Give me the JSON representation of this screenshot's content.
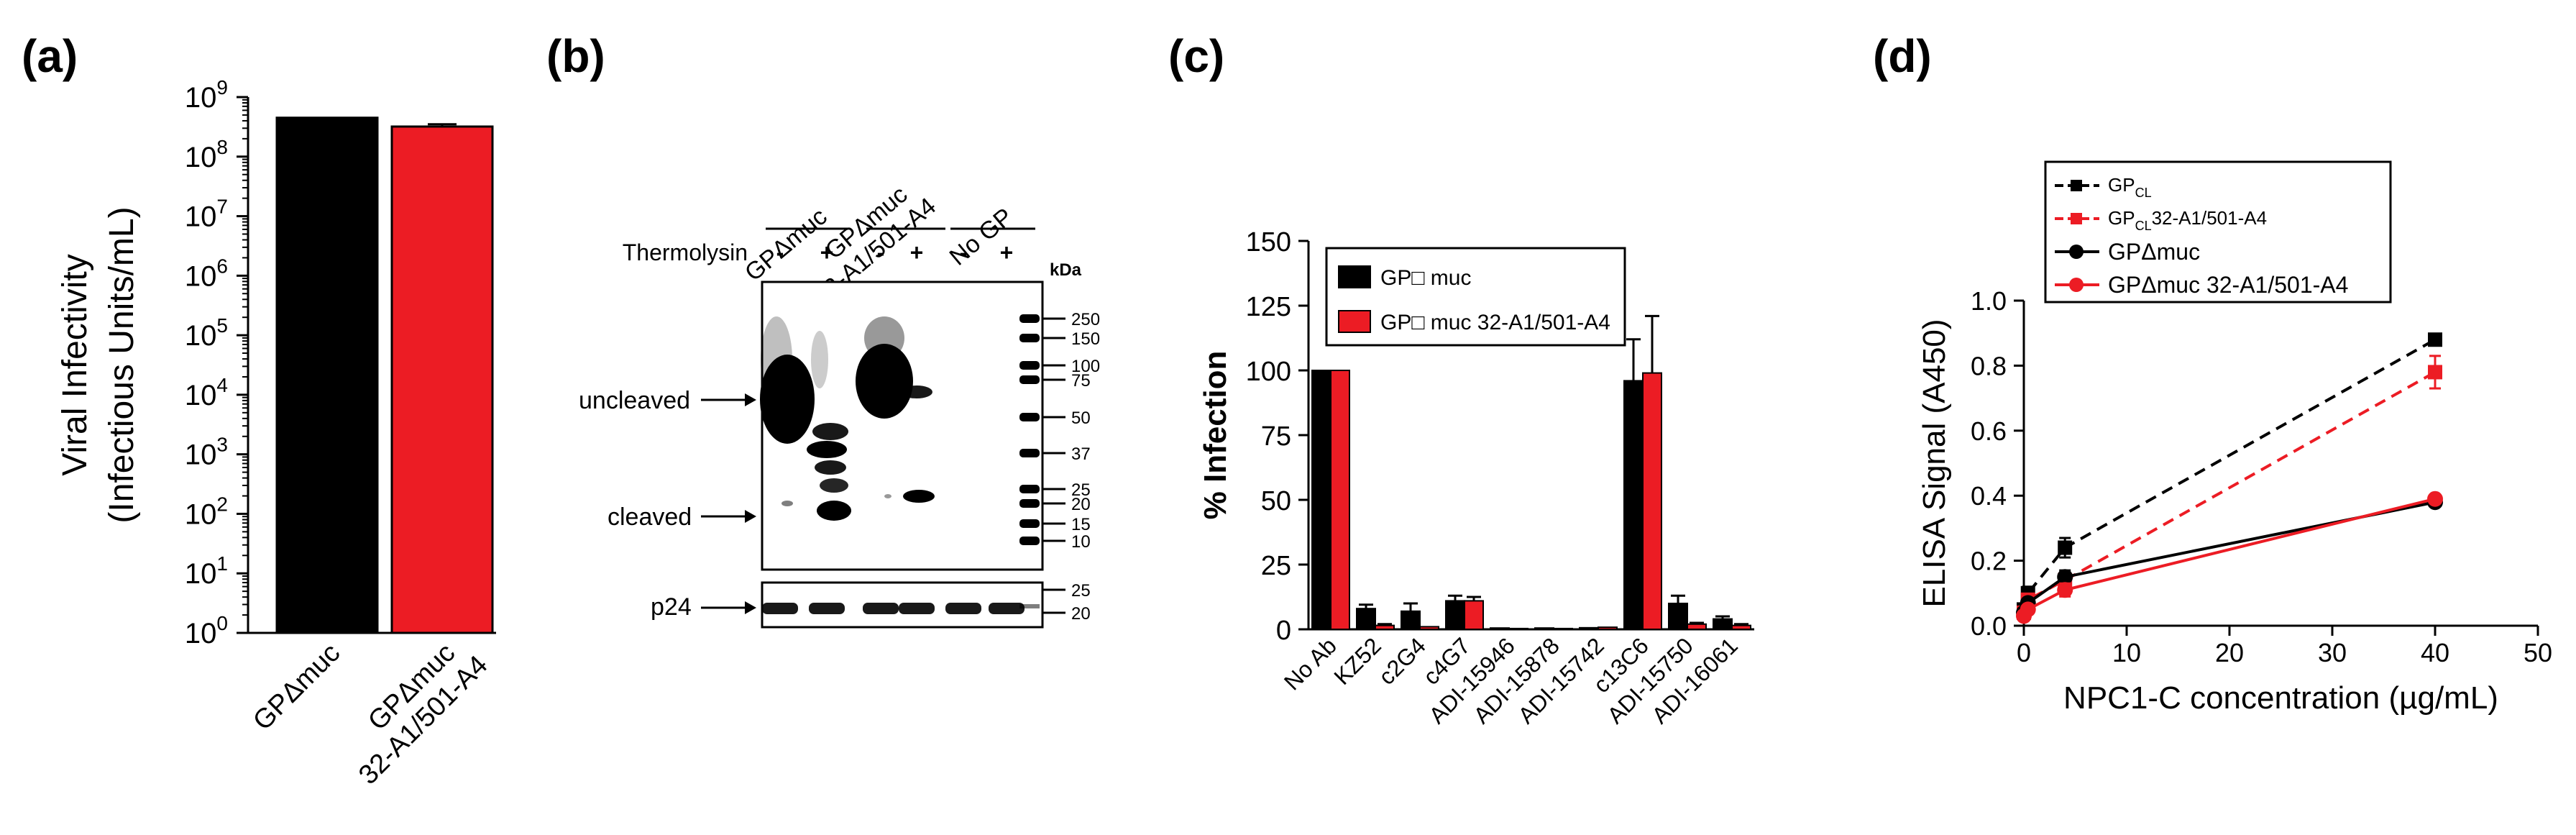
{
  "panels": {
    "a": "(a)",
    "b": "(b)",
    "c": "(c)",
    "d": "(d)"
  },
  "colors": {
    "black": "#000000",
    "red": "#ec1c24",
    "blot_gray": "#d8d8d8"
  },
  "chart_data": [
    {
      "id": "a",
      "type": "bar",
      "scale": "log",
      "title": "",
      "ylabel": "Viral Infectivity",
      "ylabel2": "(Infectious Units/mL)",
      "ylim": [
        1,
        1000000000
      ],
      "yticks": [
        {
          "base": "10",
          "exp": "0"
        },
        {
          "base": "10",
          "exp": "1"
        },
        {
          "base": "10",
          "exp": "2"
        },
        {
          "base": "10",
          "exp": "3"
        },
        {
          "base": "10",
          "exp": "4"
        },
        {
          "base": "10",
          "exp": "5"
        },
        {
          "base": "10",
          "exp": "6"
        },
        {
          "base": "10",
          "exp": "7"
        },
        {
          "base": "10",
          "exp": "8"
        },
        {
          "base": "10",
          "exp": "9"
        }
      ],
      "categories": [
        {
          "line1": "GPΔmuc",
          "line2": ""
        },
        {
          "line1": "GPΔmuc",
          "line2": "32-A1/501-A4"
        }
      ],
      "values": [
        450000000,
        320000000
      ],
      "errors": [
        0,
        30000000
      ],
      "bar_colors": [
        "#000000",
        "#ec1c24"
      ]
    },
    {
      "id": "b",
      "type": "blot",
      "lane_groups": [
        "GPΔmuc",
        "GPΔmuc\n32-A1/501-A4",
        "No GP"
      ],
      "lane_group_line1": [
        "GPΔmuc",
        "GPΔmuc",
        "No GP"
      ],
      "lane_group_line2": [
        "",
        "32-A1/501-A4",
        ""
      ],
      "thermolysin_label": "Thermolysin",
      "thermolysin_signs": [
        "-",
        "+",
        "-",
        "+",
        "-",
        "+"
      ],
      "kda_label": "kDa",
      "markers_main": [
        "250",
        "150",
        "100",
        "75",
        "50",
        "37",
        "25",
        "20",
        "15",
        "10"
      ],
      "markers_p24": [
        "25",
        "20"
      ],
      "row_labels": {
        "uncleaved": "uncleaved",
        "cleaved": "cleaved",
        "p24": "p24"
      }
    },
    {
      "id": "c",
      "type": "bar",
      "title": "",
      "ylabel": "% Infection",
      "ylim": [
        0,
        150
      ],
      "yticks": [
        0,
        25,
        50,
        75,
        100,
        125,
        150
      ],
      "categories": [
        "No Ab",
        "KZ52",
        "c2G4",
        "c4G7",
        "ADI-15946",
        "ADI-15878",
        "ADI-15742",
        "c13C6",
        "ADI-15750",
        "ADI-16061"
      ],
      "series": [
        {
          "name": "GP□ muc",
          "color": "#000000",
          "values": [
            100,
            8,
            7,
            11,
            0.5,
            0.5,
            0.6,
            96,
            10,
            4
          ],
          "errors": [
            0,
            1.5,
            3,
            2,
            0,
            0,
            0,
            16,
            3,
            1
          ]
        },
        {
          "name": "GP□ muc 32-A1/501-A4",
          "color": "#ec1c24",
          "values": [
            100,
            1.5,
            1,
            11,
            0.3,
            0.3,
            0.8,
            99,
            2,
            1.5
          ],
          "errors": [
            0,
            0.5,
            0,
            1.5,
            0,
            0,
            0,
            22,
            0.5,
            0.5
          ]
        }
      ]
    },
    {
      "id": "d",
      "type": "line",
      "title": "",
      "xlabel": "NPC1-C concentration (µg/mL)",
      "ylabel": "ELISA Signal (A450)",
      "xlim": [
        0,
        50
      ],
      "ylim": [
        0,
        1.0
      ],
      "xticks": [
        0,
        10,
        20,
        30,
        40,
        50
      ],
      "yticks": [
        "0.0",
        "0.2",
        "0.4",
        "0.6",
        "0.8",
        "1.0"
      ],
      "series": [
        {
          "name_main": "GP",
          "name_sub": "CL",
          "name_tail": "",
          "color": "#000000",
          "dash": true,
          "marker": "square",
          "x": [
            0,
            0.4,
            4,
            40
          ],
          "y": [
            0.05,
            0.1,
            0.24,
            0.88
          ],
          "err": [
            0.01,
            0.02,
            0.03,
            0.01
          ]
        },
        {
          "name_main": "GP",
          "name_sub": "CL",
          "name_tail": "32-A1/501-A4",
          "color": "#ec1c24",
          "dash": true,
          "marker": "square",
          "x": [
            0,
            0.4,
            4,
            40
          ],
          "y": [
            0.04,
            0.08,
            0.14,
            0.78
          ],
          "err": [
            0.01,
            0.01,
            0.02,
            0.05
          ]
        },
        {
          "name_main": "GPΔmuc",
          "name_sub": "",
          "name_tail": "",
          "color": "#000000",
          "dash": false,
          "marker": "circle",
          "x": [
            0,
            0.4,
            4,
            40
          ],
          "y": [
            0.04,
            0.07,
            0.15,
            0.38
          ],
          "err": [
            0.01,
            0.01,
            0.02,
            0.01
          ]
        },
        {
          "name_main": "GPΔmuc 32-A1/501-A4",
          "name_sub": "",
          "name_tail": "",
          "color": "#ec1c24",
          "dash": false,
          "marker": "circle",
          "x": [
            0,
            0.4,
            4,
            40
          ],
          "y": [
            0.03,
            0.05,
            0.11,
            0.39
          ],
          "err": [
            0.01,
            0.01,
            0.02,
            0.01
          ]
        }
      ]
    }
  ]
}
